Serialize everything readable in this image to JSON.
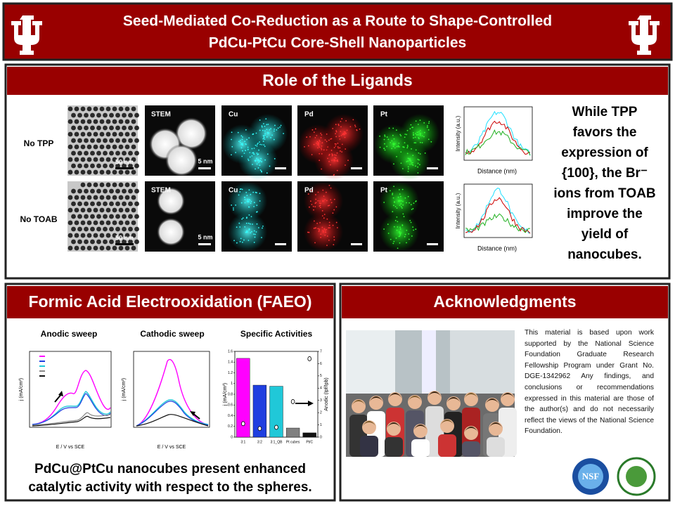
{
  "header": {
    "title_lines": [
      "Seed-Mediated Co-Reduction as a Route to Shape-Controlled",
      "PdCu-PtCu Core-Shell Nanoparticles"
    ]
  },
  "ligands": {
    "title": "Role of the Ligands",
    "rows": [
      {
        "label": "No TPP",
        "tem_scale": "50 nm",
        "stem_label": "STEM",
        "stem_scale": "5 nm",
        "maps": [
          "Cu",
          "Pd",
          "Pt"
        ]
      },
      {
        "label": "No TOAB",
        "tem_scale": "50 nm",
        "stem_label": "STEM",
        "stem_scale": "5 nm",
        "maps": [
          "Cu",
          "Pd",
          "Pt"
        ]
      }
    ],
    "profile": {
      "y_label": "Intensity (a.u.)",
      "x_label": "Distance (nm)"
    },
    "summary_lines": [
      "While TPP",
      "favors the",
      "expression of",
      "{100}, the Br⁻",
      "ions from TOAB",
      "improve the",
      "yield of",
      "nanocubes."
    ]
  },
  "faeo": {
    "title": "Formic Acid Electrooxidation (FAEO)",
    "anodic": {
      "title": "Anodic sweep",
      "y_label": "j (mA/cm²)",
      "x_label": "E / V vs SCE"
    },
    "cathodic": {
      "title": "Cathodic sweep",
      "y_label": "j (mA/cm²)",
      "x_label": "E / V vs SCE"
    },
    "chart_data": {
      "type": "bar",
      "title": "Specific Activities",
      "categories": [
        "3:1",
        "3:2",
        "3:1_QB",
        "Pt cubes",
        "Pt/C"
      ],
      "values": [
        1.47,
        0.97,
        0.95,
        0.17,
        0.08
      ],
      "colors": [
        "#ff00ff",
        "#1f3fe0",
        "#20c8d8",
        "#808080",
        "#111111"
      ],
      "y_label": "j (mA/cm²)",
      "ylim": [
        0,
        1.6
      ],
      "yticks": [
        0,
        0.2,
        0.4,
        0.6,
        0.8,
        1,
        1.2,
        1.4,
        1.6
      ],
      "y2_label": "Anodic (Ipf/Ipb)",
      "y2lim": [
        0,
        7
      ],
      "y2ticks": [
        0,
        1,
        2,
        3,
        4,
        5,
        6,
        7
      ],
      "y2values": [
        1.1,
        0.7,
        0.8,
        2.9,
        6.4
      ]
    },
    "conclusion_lines": [
      "PdCu@PtCu nanocubes present enhanced",
      "catalytic activity with respect to the spheres."
    ]
  },
  "acknowledgments": {
    "title": "Acknowledgments",
    "text": "This material is based upon work supported by the National Science Foundation Graduate Research Fellowship Program under Grant No. DGE-1342962 Any findings, and conclusions or recommendations expressed in this material are those of the author(s) and do not necessarily reflect the views of the National Science Foundation."
  }
}
